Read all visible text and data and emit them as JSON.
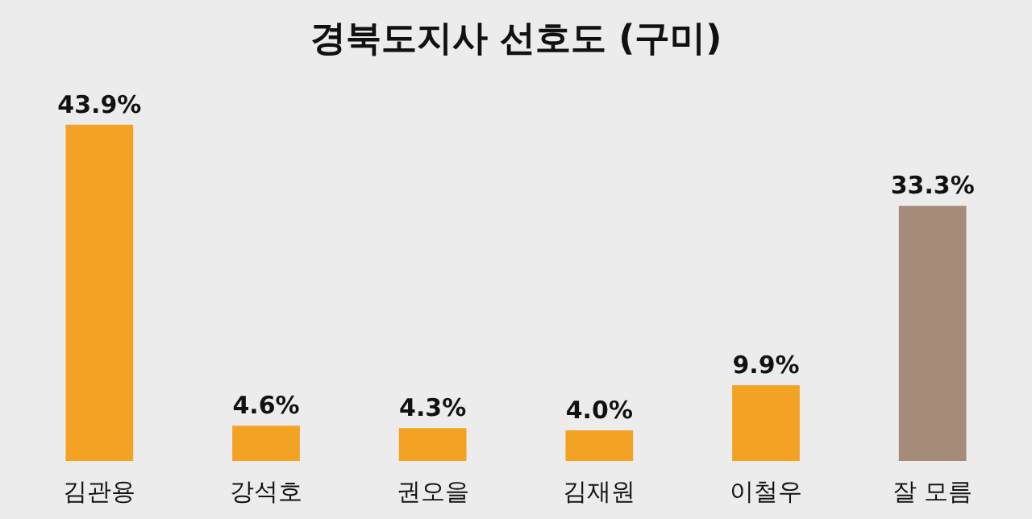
{
  "chart_data": {
    "type": "bar",
    "title": "경북도지사 선호도 (구미)",
    "categories": [
      "김관용",
      "강석호",
      "권오을",
      "김재원",
      "이철우",
      "잘 모름"
    ],
    "values": [
      43.9,
      4.6,
      4.3,
      4.0,
      9.9,
      33.3
    ],
    "colors": [
      "#f4a224",
      "#f4a224",
      "#f4a224",
      "#f4a224",
      "#f4a224",
      "#a68b78"
    ],
    "value_labels": [
      "43.9%",
      "4.6%",
      "4.3%",
      "4.0%",
      "9.9%",
      "33.3%"
    ],
    "grid": false,
    "legend": false
  }
}
